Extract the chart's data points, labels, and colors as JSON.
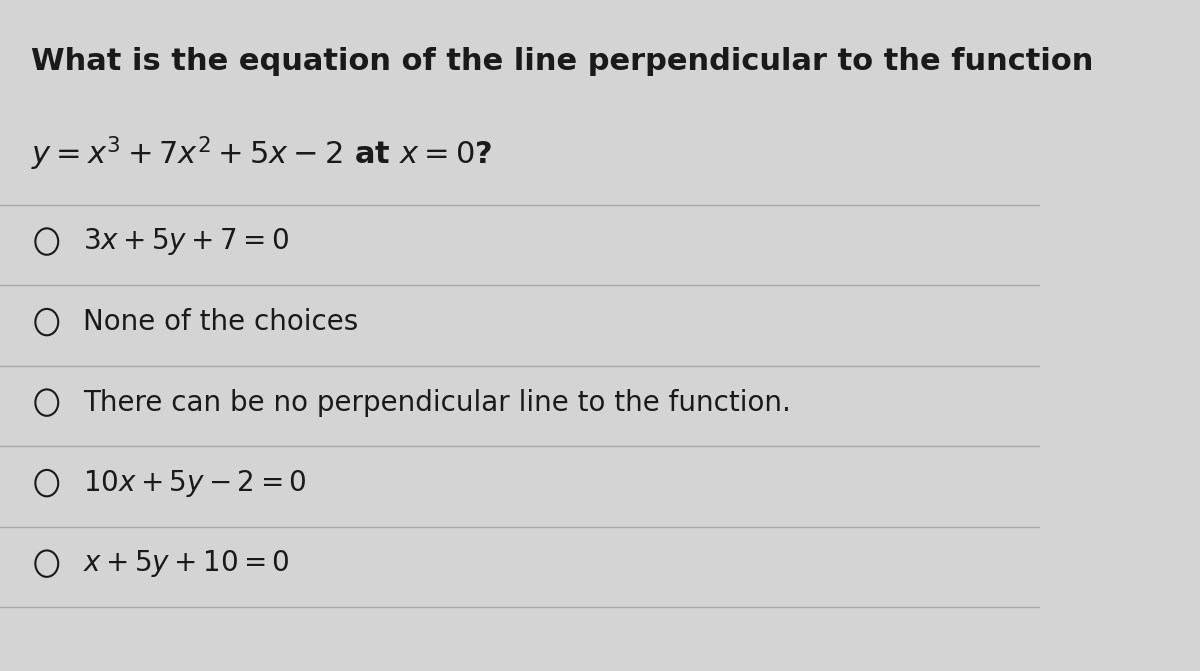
{
  "background_color": "#d4d4d4",
  "title_line1": "What is the equation of the line perpendicular to the function",
  "title_line2": "$y = x^3 + 7x^2 + 5x - 2$ at $x = 0$?",
  "choices": [
    "$3x + 5y + 7 = 0$",
    "None of the choices",
    "There can be no perpendicular line to the function.",
    "$10x + 5y - 2 = 0$",
    "$x + 5y + 10 = 0$"
  ],
  "divider_color": "#aaaaaa",
  "text_color": "#1a1a1a",
  "title_fontsize": 22,
  "choice_fontsize": 20,
  "fig_width": 12.0,
  "fig_height": 6.71
}
